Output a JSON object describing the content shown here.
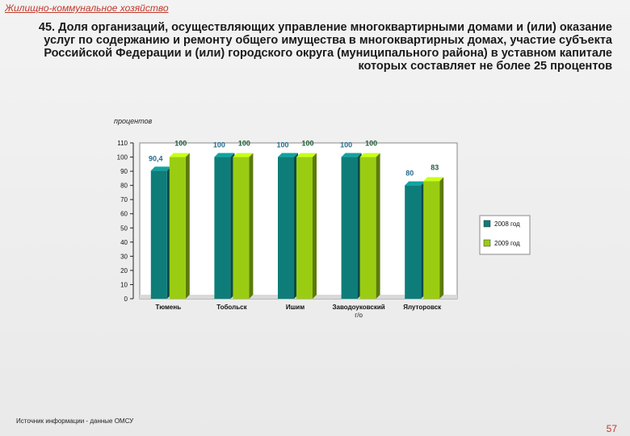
{
  "section_label": "Жилищно-коммунальное хозяйство",
  "title": "45. Доля организаций, осуществляющих управление многоквартирными домами и (или) оказание услуг по содержанию и ремонту общего имущества в многоквартирных домах, участие субъекта Российской Федерации и (или) городского округа (муниципального района) в уставном капитале которых составляет не более 25 процентов",
  "unit_label": "процентов",
  "footnote": "Источник информации - данные ОМСУ",
  "page_number": "57",
  "colors": {
    "series_2008": "#0e7d7a",
    "series_2009": "#9acd12",
    "label_2008": "#2a6a8a",
    "label_2009": "#1f5e3a"
  },
  "chart_data": {
    "type": "bar",
    "categories": [
      "Тюмень",
      "Тобольск",
      "Ишим",
      "Заводоуковский г/о",
      "Ялуторовск"
    ],
    "series": [
      {
        "name": "2008 год",
        "values": [
          90.4,
          100,
          100,
          100,
          80
        ],
        "labels": [
          "90,4",
          "100",
          "100",
          "100",
          "80"
        ]
      },
      {
        "name": "2009 год",
        "values": [
          100,
          100,
          100,
          100,
          83
        ],
        "labels": [
          "100",
          "100",
          "100",
          "100",
          "83"
        ]
      }
    ],
    "ylim": [
      0,
      110
    ],
    "yticks": [
      0,
      10,
      20,
      30,
      40,
      50,
      60,
      70,
      80,
      90,
      100,
      110
    ],
    "grid": false,
    "legend_position": "right"
  }
}
